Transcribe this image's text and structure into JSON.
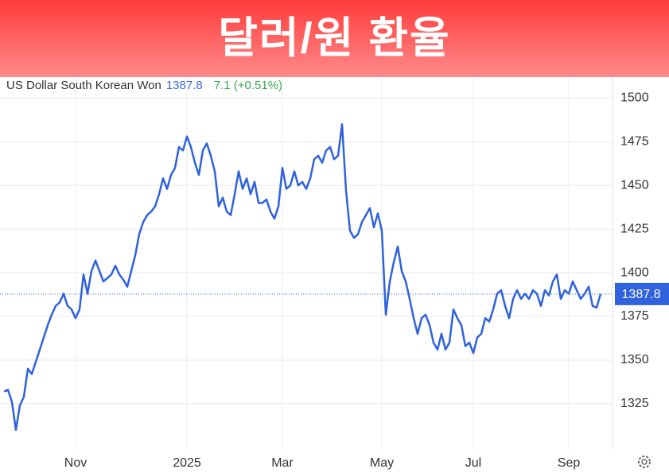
{
  "chart_data": {
    "type": "line",
    "title": "달러/원 환율",
    "change": "7.1 (+0.51%)",
    "categories": [
      null,
      null,
      null,
      null,
      null,
      null,
      null,
      null,
      null,
      null,
      null,
      null,
      null,
      null,
      null,
      null,
      null,
      null,
      "Nov",
      null,
      null,
      null,
      null,
      null,
      null,
      null,
      null,
      null,
      null,
      null,
      null,
      null,
      null,
      null,
      null,
      null,
      null,
      null,
      null,
      null,
      null,
      null,
      null,
      null,
      null,
      null,
      "2025",
      null,
      null,
      null,
      null,
      null,
      null,
      null,
      null,
      null,
      null,
      null,
      null,
      null,
      null,
      null,
      null,
      null,
      null,
      null,
      null,
      null,
      null,
      null,
      "Mar",
      null,
      null,
      null,
      null,
      null,
      null,
      null,
      null,
      null,
      null,
      null,
      null,
      null,
      null,
      null,
      null,
      null,
      null,
      null,
      null,
      null,
      null,
      null,
      null,
      "May",
      null,
      null,
      null,
      null,
      null,
      null,
      null,
      null,
      null,
      null,
      null,
      null,
      null,
      null,
      null,
      null,
      null,
      null,
      null,
      null,
      null,
      null,
      "Jul",
      null,
      null,
      null,
      null,
      null,
      null,
      null,
      null,
      null,
      null,
      null,
      null,
      null,
      null,
      null,
      null,
      null,
      null,
      null,
      null,
      null,
      null,
      null,
      "Sep",
      null,
      null,
      null,
      null,
      null,
      null,
      null,
      null
    ],
    "series": [
      {
        "name": "US Dollar South Korean Won",
        "color": "#2f62dc",
        "values": [
          1332,
          1333,
          1326,
          1310,
          1324,
          1329,
          1345,
          1342,
          1349,
          1356,
          1363,
          1370,
          1376,
          1381,
          1383,
          1388,
          1381,
          1379,
          1374,
          1379,
          1399,
          1388,
          1401,
          1407,
          1401,
          1395,
          1397,
          1399,
          1404,
          1399,
          1396,
          1392,
          1401,
          1410,
          1422,
          1429,
          1433,
          1435,
          1438,
          1445,
          1454,
          1448,
          1456,
          1460,
          1472,
          1470,
          1478,
          1472,
          1463,
          1456,
          1470,
          1474,
          1467,
          1458,
          1438,
          1443,
          1435,
          1433,
          1445,
          1458,
          1448,
          1454,
          1445,
          1452,
          1440,
          1440,
          1442,
          1435,
          1431,
          1438,
          1460,
          1448,
          1450,
          1458,
          1450,
          1452,
          1448,
          1454,
          1465,
          1467,
          1463,
          1470,
          1472,
          1465,
          1467,
          1485,
          1447,
          1424,
          1420,
          1422,
          1429,
          1433,
          1437,
          1426,
          1434,
          1424,
          1376,
          1395,
          1406,
          1415,
          1401,
          1395,
          1385,
          1374,
          1365,
          1374,
          1376,
          1370,
          1360,
          1356,
          1365,
          1356,
          1360,
          1379,
          1374,
          1370,
          1358,
          1360,
          1354,
          1363,
          1365,
          1374,
          1372,
          1379,
          1388,
          1390,
          1381,
          1374,
          1385,
          1390,
          1385,
          1388,
          1385,
          1390,
          1388,
          1381,
          1390,
          1387,
          1395,
          1399,
          1385,
          1390,
          1388,
          1395,
          1390,
          1385,
          1388,
          1392,
          1381,
          1380,
          1387.8
        ]
      }
    ],
    "ylim": [
      1299,
      1512
    ],
    "yticks": [
      1325,
      1350,
      1375,
      1400,
      1425,
      1450,
      1475,
      1500
    ],
    "grid": true
  }
}
